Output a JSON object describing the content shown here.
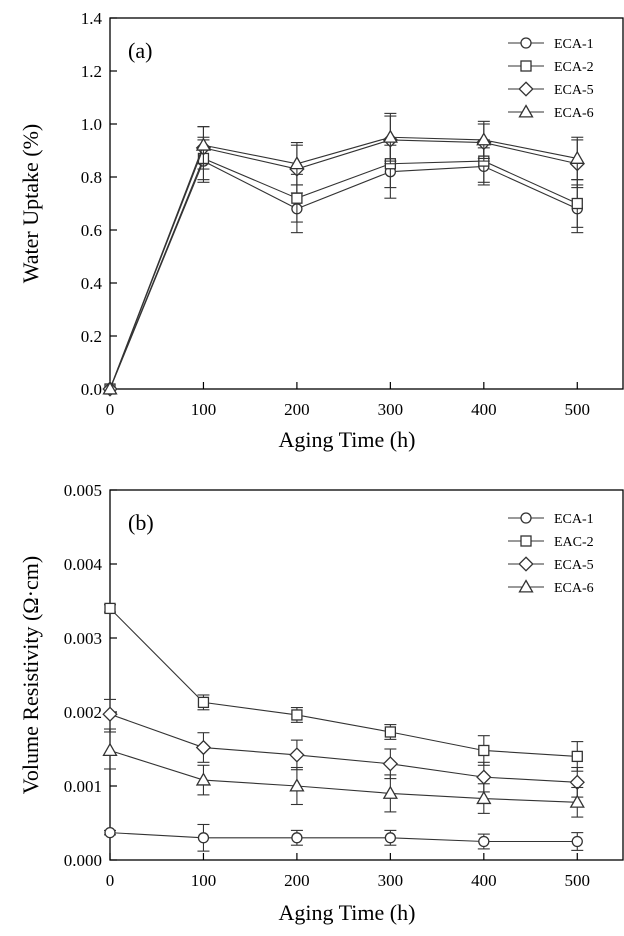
{
  "chart_data": [
    {
      "type": "line",
      "panel_label": "(a)",
      "xlabel": "Aging Time (h)",
      "ylabel": "Water Uptake (%)",
      "xlim": [
        0,
        550
      ],
      "ylim": [
        0,
        1.4
      ],
      "x_ticks": [
        "0",
        "100",
        "200",
        "300",
        "400",
        "500"
      ],
      "y_ticks": [
        "0.0",
        "0.2",
        "0.4",
        "0.6",
        "0.8",
        "1.0",
        "1.2",
        "1.4"
      ],
      "legend_position": "top-right",
      "x": [
        0,
        100,
        200,
        300,
        400,
        500
      ],
      "series": [
        {
          "name": "ECA-1",
          "marker": "circle",
          "values": [
            0.0,
            0.86,
            0.68,
            0.82,
            0.84,
            0.68
          ],
          "errors": [
            0,
            0.08,
            0.09,
            0.1,
            0.07,
            0.09
          ]
        },
        {
          "name": "ECA-2",
          "marker": "square",
          "values": [
            0.0,
            0.87,
            0.72,
            0.85,
            0.86,
            0.7
          ],
          "errors": [
            0,
            0.08,
            0.09,
            0.09,
            0.08,
            0.09
          ]
        },
        {
          "name": "ECA-5",
          "marker": "diamond",
          "values": [
            0.0,
            0.91,
            0.83,
            0.94,
            0.93,
            0.85
          ],
          "errors": [
            0,
            0.08,
            0.09,
            0.09,
            0.07,
            0.09
          ]
        },
        {
          "name": "ECA-6",
          "marker": "triangle",
          "values": [
            0.0,
            0.92,
            0.85,
            0.95,
            0.94,
            0.87
          ],
          "errors": [
            0,
            0.07,
            0.08,
            0.09,
            0.07,
            0.08
          ]
        }
      ]
    },
    {
      "type": "line",
      "panel_label": "(b)",
      "xlabel": "Aging Time (h)",
      "ylabel": "Volume Resistivity (Ω·cm)",
      "xlim": [
        0,
        550
      ],
      "ylim": [
        0,
        0.005
      ],
      "x_ticks": [
        "0",
        "100",
        "200",
        "300",
        "400",
        "500"
      ],
      "y_ticks": [
        "0.000",
        "0.001",
        "0.002",
        "0.003",
        "0.004",
        "0.005"
      ],
      "legend_position": "top-right",
      "x": [
        0,
        100,
        200,
        300,
        400,
        500
      ],
      "series": [
        {
          "name": "ECA-1",
          "marker": "circle",
          "values": [
            0.00037,
            0.0003,
            0.0003,
            0.0003,
            0.00025,
            0.00025
          ],
          "errors": [
            3e-05,
            0.00018,
            0.0001,
            0.0001,
            0.0001,
            0.00012
          ]
        },
        {
          "name": "EAC-2",
          "marker": "square",
          "values": [
            0.0034,
            0.00213,
            0.00196,
            0.00173,
            0.00148,
            0.0014
          ],
          "errors": [
            5e-05,
            0.0001,
            0.0001,
            0.0001,
            0.0002,
            0.0002
          ]
        },
        {
          "name": "ECA-5",
          "marker": "diamond",
          "values": [
            0.00197,
            0.00152,
            0.00142,
            0.0013,
            0.00112,
            0.00105
          ],
          "errors": [
            0.0002,
            0.0002,
            0.0002,
            0.0002,
            0.0002,
            0.0002
          ]
        },
        {
          "name": "ECA-6",
          "marker": "triangle",
          "values": [
            0.00148,
            0.00108,
            0.001,
            0.0009,
            0.00083,
            0.00078
          ],
          "errors": [
            0.00025,
            0.0002,
            0.00025,
            0.00025,
            0.0002,
            0.0002
          ]
        }
      ]
    }
  ]
}
